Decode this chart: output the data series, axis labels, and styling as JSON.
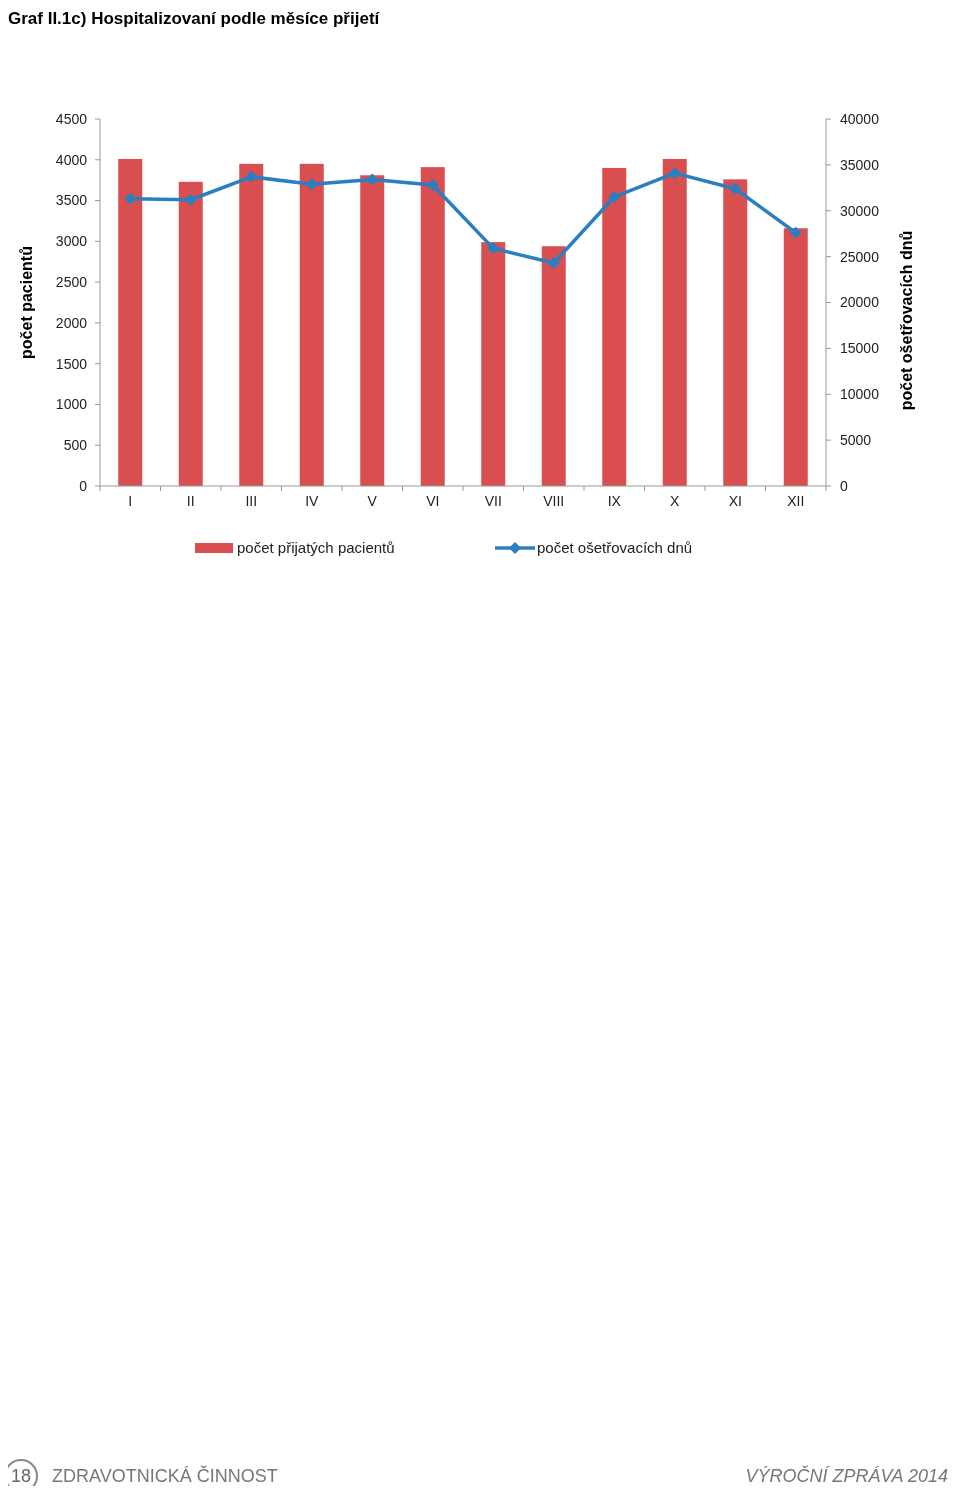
{
  "chart_data": {
    "type": "bar",
    "title": "Graf II.1c) Hospitalizovaní podle měsíce přijetí",
    "ylabel": "počet pacientů",
    "y2label": "počet ošetřovacích dnů",
    "categories": [
      "I",
      "II",
      "III",
      "IV",
      "V",
      "VI",
      "VII",
      "VIII",
      "IX",
      "X",
      "XI",
      "XII"
    ],
    "series": [
      {
        "name": "počet přijatých pacientů",
        "color": "#d94f4f",
        "values": [
          4010,
          3730,
          3950,
          3950,
          3810,
          3910,
          2990,
          2940,
          3900,
          4010,
          3760,
          3160
        ]
      },
      {
        "name": "počet ošetřovacích dnů",
        "type": "line",
        "axis": "y2",
        "color": "#2a7fc1",
        "marker": "diamond",
        "values": [
          31300,
          31200,
          33700,
          32900,
          33400,
          32800,
          25900,
          24300,
          31500,
          34100,
          32400,
          27600
        ]
      }
    ],
    "ylim": [
      0,
      4500
    ],
    "yticks": [
      0,
      500,
      1000,
      1500,
      2000,
      2500,
      3000,
      3500,
      4000,
      4500
    ],
    "y2lim": [
      0,
      40000
    ],
    "y2ticks": [
      0,
      5000,
      10000,
      15000,
      20000,
      25000,
      30000,
      35000,
      40000
    ],
    "legend": "bottom",
    "grid": false,
    "annotations": [
      "18",
      "ZDRAVOTNICKÁ ČINNOST",
      "VÝROČNÍ ZPRÁVA 2014"
    ]
  }
}
